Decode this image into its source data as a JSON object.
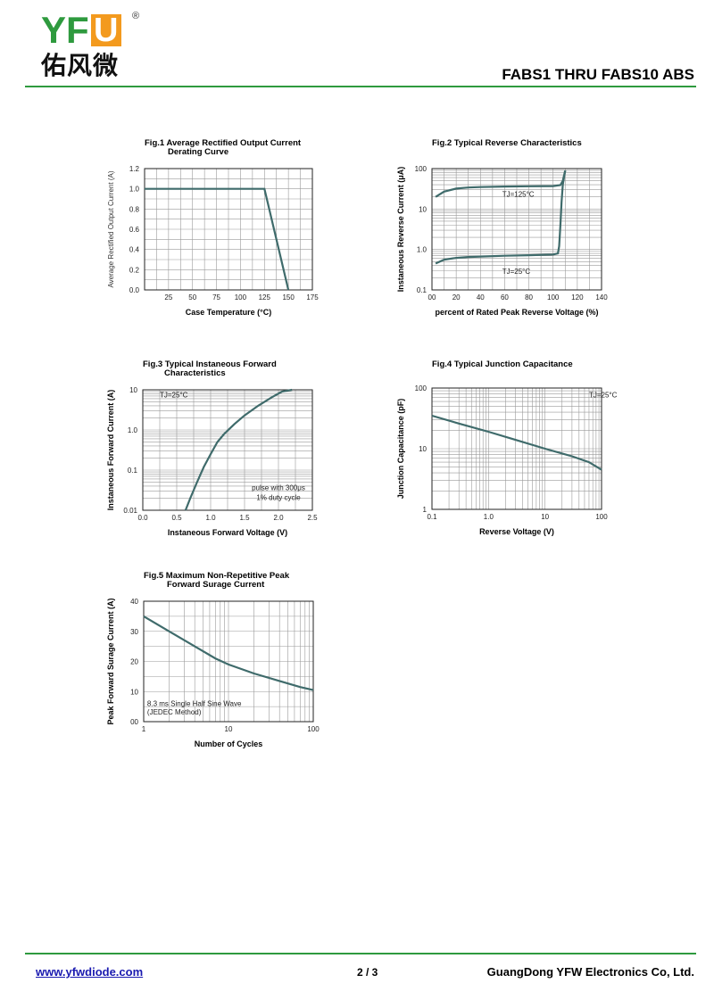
{
  "header": {
    "logo_text": "YF",
    "logo_u": "U",
    "logo_reg": "®",
    "logo_cn": "佑风微",
    "doc_title": "FABS1 THRU FABS10  ABS"
  },
  "footer": {
    "link": "www.yfwdiode.com",
    "page": "2 / 3",
    "company": "GuangDong YFW Electronics Co, Ltd."
  },
  "colors": {
    "accent": "#2e9a3e",
    "logo_orange": "#f39a1e",
    "curve": "#3f6b6b"
  },
  "chart_data": [
    {
      "id": "fig1",
      "type": "line",
      "title": [
        "Fig.1  Average Rectified Output Current",
        "Derating Curve"
      ],
      "xlabel": "Case Temperature (°C)",
      "ylabel": "Average Rectified Output Current (A)",
      "x_scale": "linear",
      "y_scale": "linear",
      "xlim": [
        0,
        175
      ],
      "ylim": [
        0,
        1.2
      ],
      "xticks": [
        25,
        50,
        75,
        100,
        125,
        150,
        175
      ],
      "xtick_labels": [
        "25",
        "50",
        "75",
        "100",
        "125",
        "150",
        "175"
      ],
      "yticks": [
        0,
        0.2,
        0.4,
        0.6,
        0.8,
        1.0,
        1.2
      ],
      "ytick_labels": [
        "0.0",
        "0.2",
        "0.4",
        "0.6",
        "0.8",
        "1.0",
        "1.2"
      ],
      "grid": true,
      "series": [
        {
          "x": [
            0,
            125,
            150
          ],
          "y": [
            1.0,
            1.0,
            0
          ]
        }
      ],
      "annotations": []
    },
    {
      "id": "fig2",
      "type": "line",
      "title": [
        "Fig.2  Typical Reverse Characteristics"
      ],
      "xlabel": "percent of Rated  Peak Reverse Voltage (%)",
      "ylabel": "Instaneous Reverse Current  (μA)",
      "x_scale": "linear",
      "y_scale": "log",
      "xlim": [
        0,
        140
      ],
      "ylim": [
        0.1,
        100
      ],
      "xticks": [
        0,
        20,
        40,
        60,
        80,
        100,
        120,
        140
      ],
      "xtick_labels": [
        "00",
        "20",
        "40",
        "60",
        "80",
        "100",
        "120",
        "140"
      ],
      "yticks": [
        0.1,
        1,
        10,
        100
      ],
      "ytick_labels": [
        "0.1",
        "1.0",
        "10",
        "100"
      ],
      "grid": true,
      "series": [
        {
          "x": [
            3,
            10,
            20,
            30,
            40,
            60,
            80,
            100,
            106,
            108,
            110
          ],
          "y": [
            20,
            27,
            32,
            34,
            35,
            36,
            36.5,
            37,
            39,
            50,
            90
          ]
        },
        {
          "x": [
            3,
            10,
            20,
            30,
            40,
            60,
            80,
            100,
            104,
            105,
            106,
            107,
            108,
            110
          ],
          "y": [
            0.45,
            0.56,
            0.62,
            0.65,
            0.67,
            0.7,
            0.72,
            0.75,
            0.8,
            1.2,
            4,
            15,
            40,
            90
          ]
        }
      ],
      "annotations": [
        {
          "text": "TJ=125°C",
          "x": 58,
          "y": 20
        },
        {
          "text": "TJ=25°C",
          "x": 58,
          "y": 0.25
        }
      ]
    },
    {
      "id": "fig3",
      "type": "line",
      "title": [
        "Fig.3  Typical Instaneous Forward",
        "Characteristics"
      ],
      "xlabel": "Instaneous Forward Voltage (V)",
      "ylabel": "Instaneous Forward Current (A)",
      "x_scale": "linear",
      "y_scale": "log",
      "xlim": [
        0,
        2.5
      ],
      "ylim": [
        0.01,
        10
      ],
      "xticks": [
        0,
        0.5,
        1.0,
        1.5,
        2.0,
        2.5
      ],
      "xtick_labels": [
        "0.0",
        "0.5",
        "1.0",
        "1.5",
        "2.0",
        "2.5"
      ],
      "yticks": [
        0.01,
        0.1,
        1,
        10
      ],
      "ytick_labels": [
        "0.01",
        "0.1",
        "1.0",
        "10"
      ],
      "grid": true,
      "series": [
        {
          "x": [
            0.63,
            0.7,
            0.8,
            0.9,
            1.0,
            1.1,
            1.2,
            1.35,
            1.5,
            1.7,
            1.9,
            2.05,
            2.2
          ],
          "y": [
            0.01,
            0.02,
            0.05,
            0.12,
            0.25,
            0.5,
            0.8,
            1.4,
            2.3,
            4.0,
            6.5,
            9.0,
            10
          ]
        }
      ],
      "annotations": [
        {
          "text": "TJ=25°C",
          "x": 0.25,
          "y": 6.5
        },
        {
          "text": "pulse with 300μs",
          "x": 2.0,
          "y": 0.032
        },
        {
          "text": "1% duty cycle",
          "x": 2.0,
          "y": 0.018
        }
      ]
    },
    {
      "id": "fig4",
      "type": "line",
      "title": [
        "Fig.4  Typical Junction Capacitance"
      ],
      "xlabel": "Reverse  Voltage (V)",
      "ylabel": "Junction Capacitance (pF)",
      "x_scale": "log",
      "y_scale": "log",
      "xlim": [
        0.1,
        100
      ],
      "ylim": [
        1,
        100
      ],
      "xticks": [
        0.1,
        1,
        10,
        100
      ],
      "xtick_labels": [
        "0.1",
        "1.0",
        "10",
        "100"
      ],
      "yticks": [
        1,
        10,
        100
      ],
      "ytick_labels": [
        "1",
        "10",
        "100"
      ],
      "grid": true,
      "series": [
        {
          "x": [
            0.1,
            0.3,
            1,
            3,
            10,
            30,
            60,
            100
          ],
          "y": [
            35,
            26,
            19,
            14,
            10,
            7.5,
            6,
            4.5
          ]
        }
      ],
      "annotations": [
        {
          "text": "TJ=25°C",
          "x": 60,
          "y": 70
        }
      ]
    },
    {
      "id": "fig5",
      "type": "line",
      "title": [
        "Fig.5  Maximum Non-Repetitive Peak",
        "Forward Surage Current"
      ],
      "xlabel": "Number of Cycles",
      "ylabel": "Peak Forward Surage Current (A)",
      "x_scale": "log",
      "y_scale": "linear",
      "xlim": [
        1,
        100
      ],
      "ylim": [
        0,
        40
      ],
      "xticks": [
        1,
        10,
        100
      ],
      "xtick_labels": [
        "1",
        "10",
        "100"
      ],
      "yticks": [
        0,
        10,
        20,
        30,
        40
      ],
      "ytick_labels": [
        "00",
        "10",
        "20",
        "30",
        "40"
      ],
      "grid": true,
      "series": [
        {
          "x": [
            1,
            2,
            4,
            7,
            10,
            20,
            40,
            70,
            100
          ],
          "y": [
            35,
            30,
            25,
            21,
            19,
            16,
            13.5,
            11.5,
            10.5
          ]
        }
      ],
      "annotations": [
        {
          "text": "8.3 ms Single Half Sine Wave",
          "x": 1.1,
          "y": 5.2
        },
        {
          "text": "(JEDEC Method)",
          "x": 1.1,
          "y": 2.3
        }
      ]
    }
  ]
}
